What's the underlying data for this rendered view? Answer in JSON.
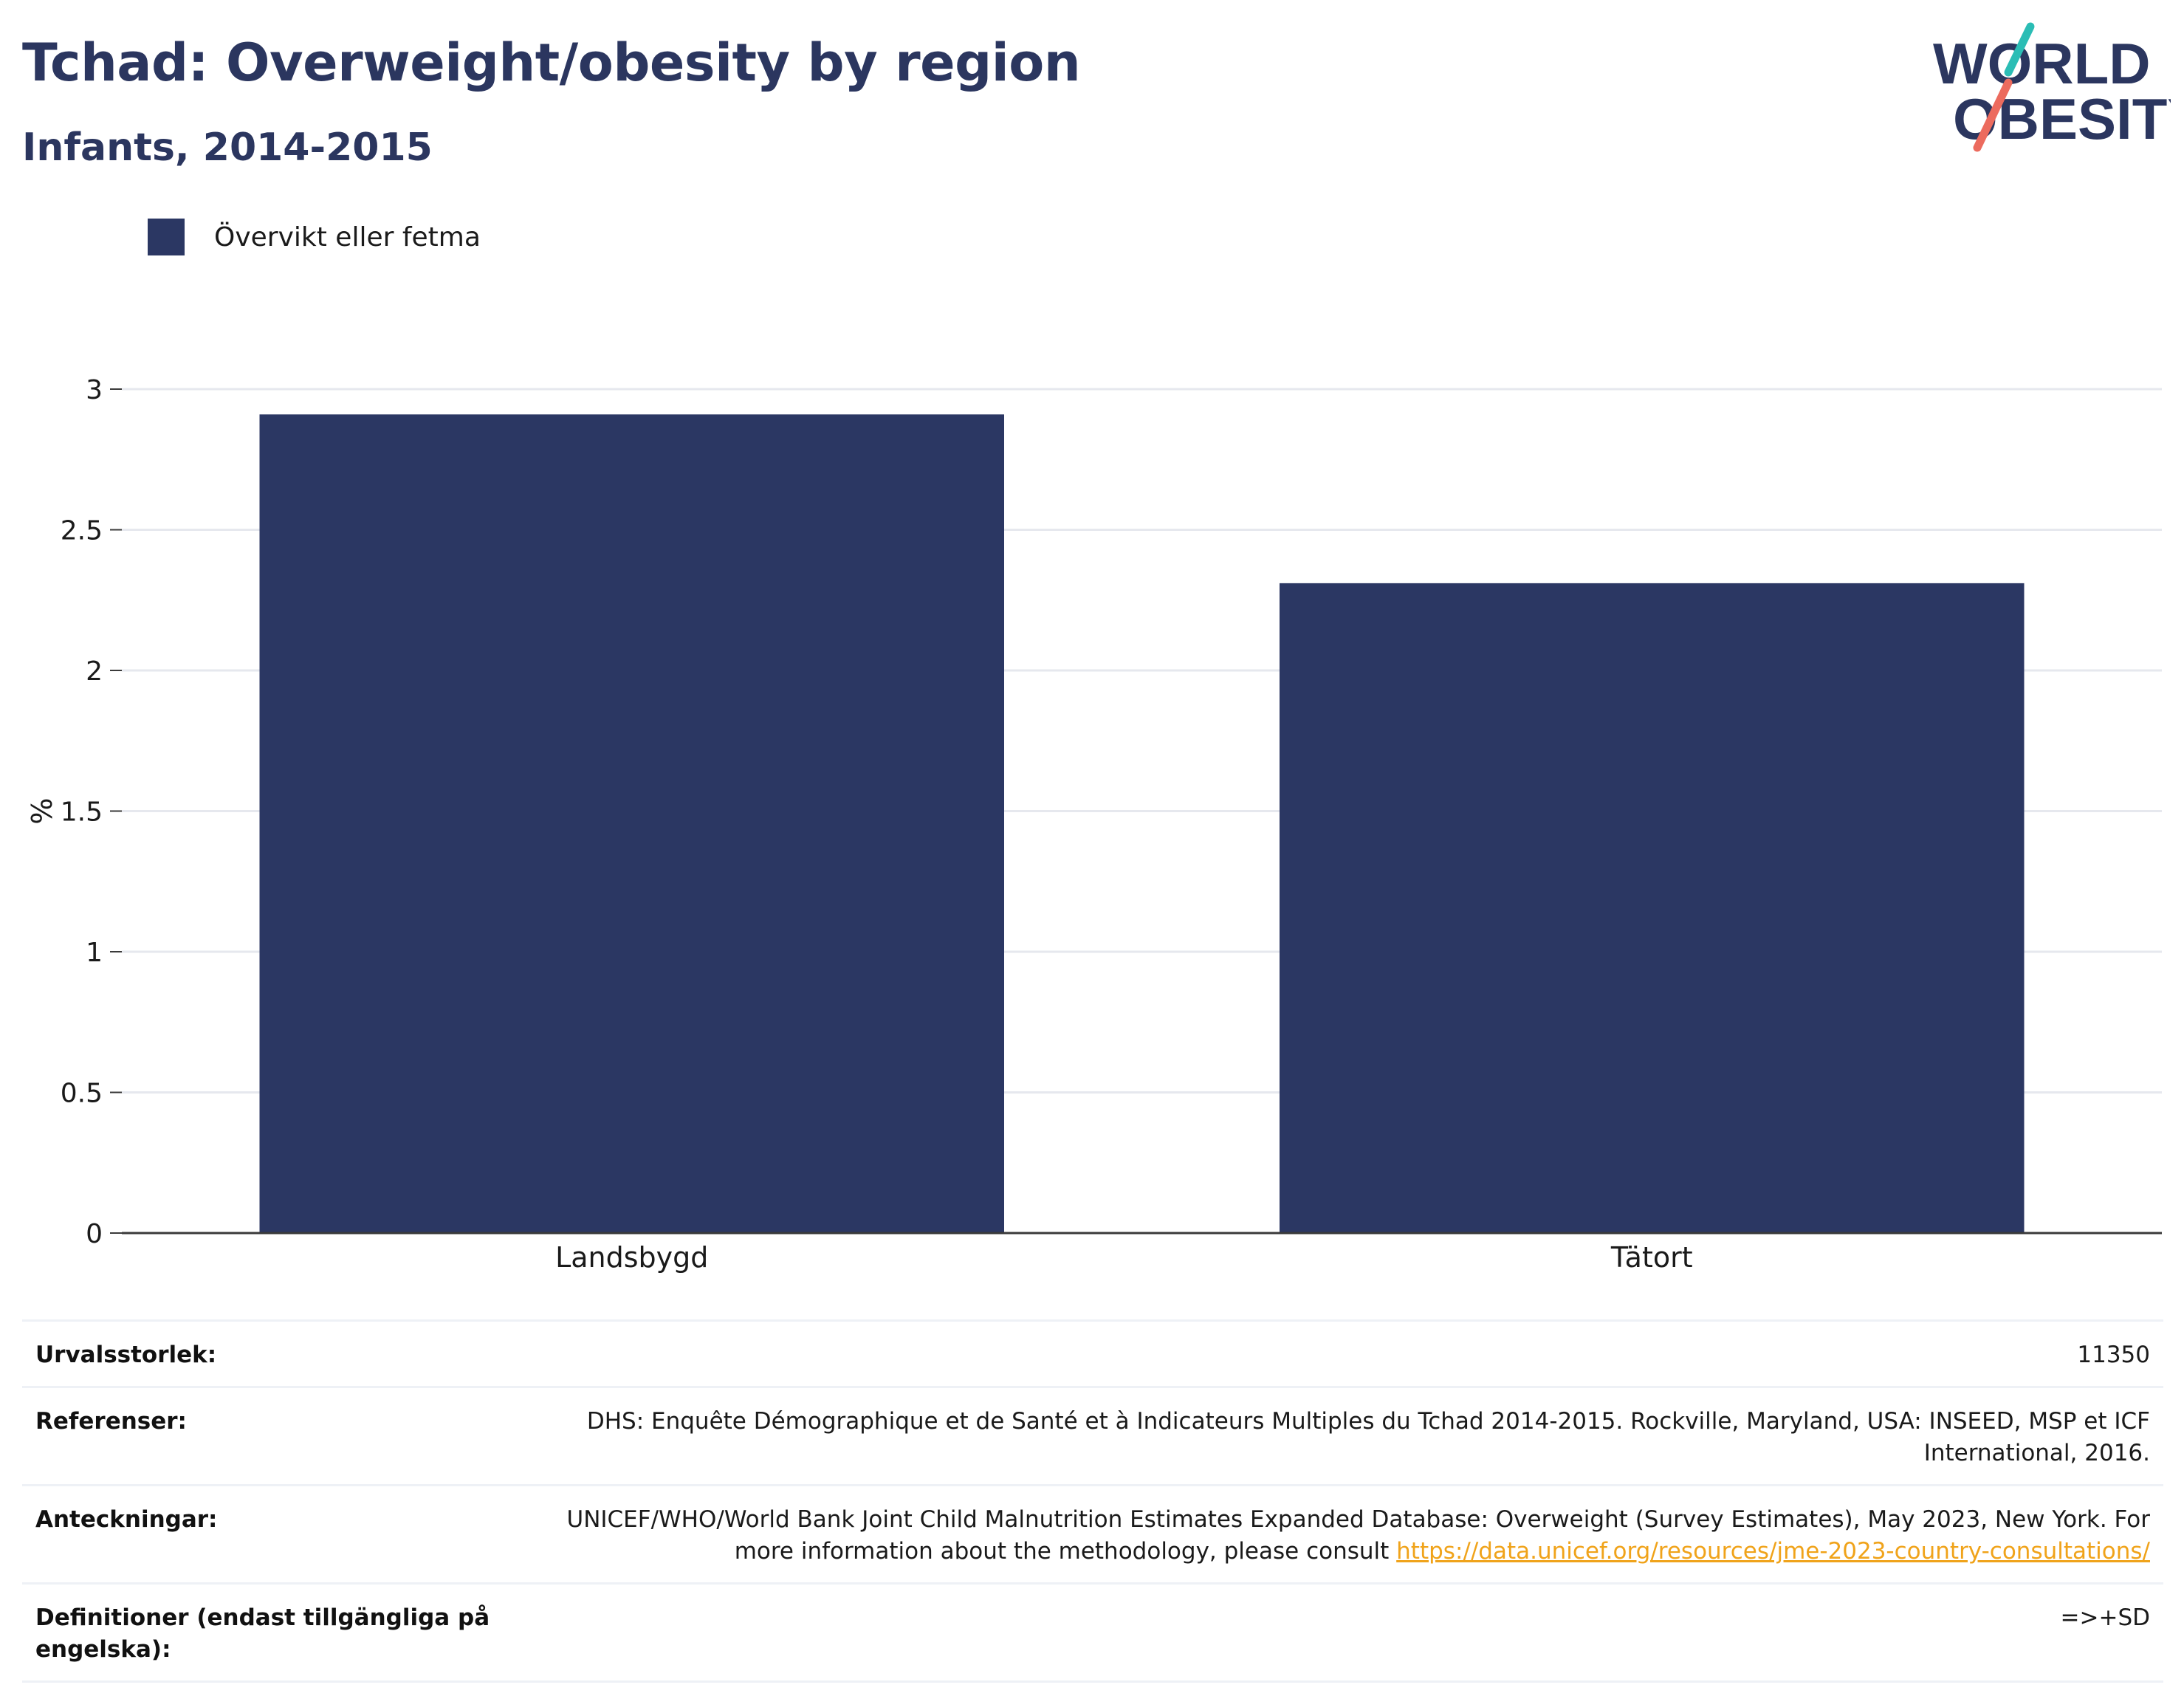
{
  "header": {
    "title": "Tchad: Overweight/obesity by region",
    "subtitle": "Infants, 2014-2015"
  },
  "logo": {
    "line1": "WORLD",
    "line2": "OBESITY"
  },
  "colors": {
    "bar": "#2b3763",
    "title": "#2b365f",
    "grid": "#e6e8ee",
    "axis": "#3a3a3a",
    "link": "#f0a31a"
  },
  "chart_data": {
    "type": "bar",
    "categories": [
      "Landsbygd",
      "Tätort"
    ],
    "series": [
      {
        "name": "Övervikt eller fetma",
        "values": [
          2.91,
          2.31
        ]
      }
    ],
    "ylabel": "%",
    "xlabel": "",
    "ylim": [
      0,
      3
    ],
    "yticks": [
      0,
      0.5,
      1,
      1.5,
      2,
      2.5,
      3
    ],
    "ytick_labels": [
      "0",
      "0.5",
      "1",
      "1.5",
      "2",
      "2.5",
      "3"
    ],
    "grid": true,
    "legend": "top-left"
  },
  "meta": {
    "sample_label": "Urvalsstorlek:",
    "sample_value": "11350",
    "refs_label": "Referenser:",
    "refs_value": "DHS: Enquête Démographique et de Santé et à Indicateurs Multiples du Tchad 2014-2015. Rockville, Maryland, USA: INSEED, MSP et ICF International, 2016.",
    "notes_label": "Anteckningar:",
    "notes_value": "UNICEF/WHO/World Bank Joint Child Malnutrition Estimates Expanded Database: Overweight (Survey Estimates), May 2023, New York. For more information about the methodology, please consult ",
    "notes_link": "https://data.unicef.org/resources/jme-2023-country-consultations/",
    "defs_label": "Definitioner (endast tillgängliga på engelska):",
    "defs_value": "=>+SD"
  }
}
